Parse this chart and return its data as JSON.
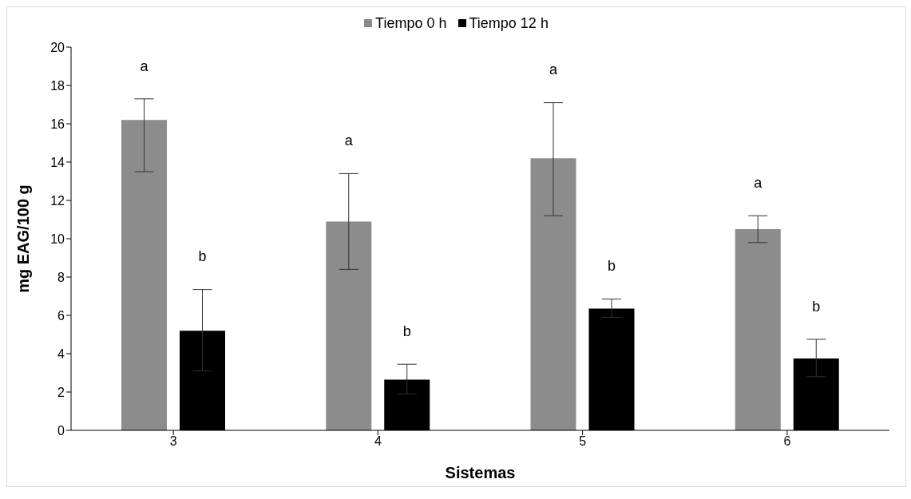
{
  "chart_data": {
    "type": "bar",
    "xlabel": "Sistemas",
    "ylabel": "mg EAG/100 g",
    "categories": [
      "3",
      "4",
      "5",
      "6"
    ],
    "series": [
      {
        "name": "Tiempo 0 h",
        "color": "#8c8c8c",
        "values": [
          16.2,
          10.9,
          14.2,
          10.5
        ],
        "errors": [
          [
            13.5,
            17.3
          ],
          [
            8.4,
            13.4
          ],
          [
            11.2,
            17.1
          ],
          [
            9.8,
            11.2
          ]
        ]
      },
      {
        "name": "Tiempo 12 h",
        "color": "#000000",
        "values": [
          5.2,
          2.65,
          6.35,
          3.75
        ],
        "errors": [
          [
            3.1,
            7.35
          ],
          [
            1.9,
            3.45
          ],
          [
            5.9,
            6.85
          ],
          [
            2.8,
            4.75
          ]
        ]
      }
    ],
    "ylim": [
      0,
      20
    ],
    "yticks": [
      0,
      2,
      4,
      6,
      8,
      10,
      12,
      14,
      16,
      18,
      20
    ],
    "grid": false,
    "legend": "top",
    "annotations": [
      "a",
      "b",
      "a",
      "b",
      "a",
      "b",
      "a",
      "b"
    ]
  }
}
